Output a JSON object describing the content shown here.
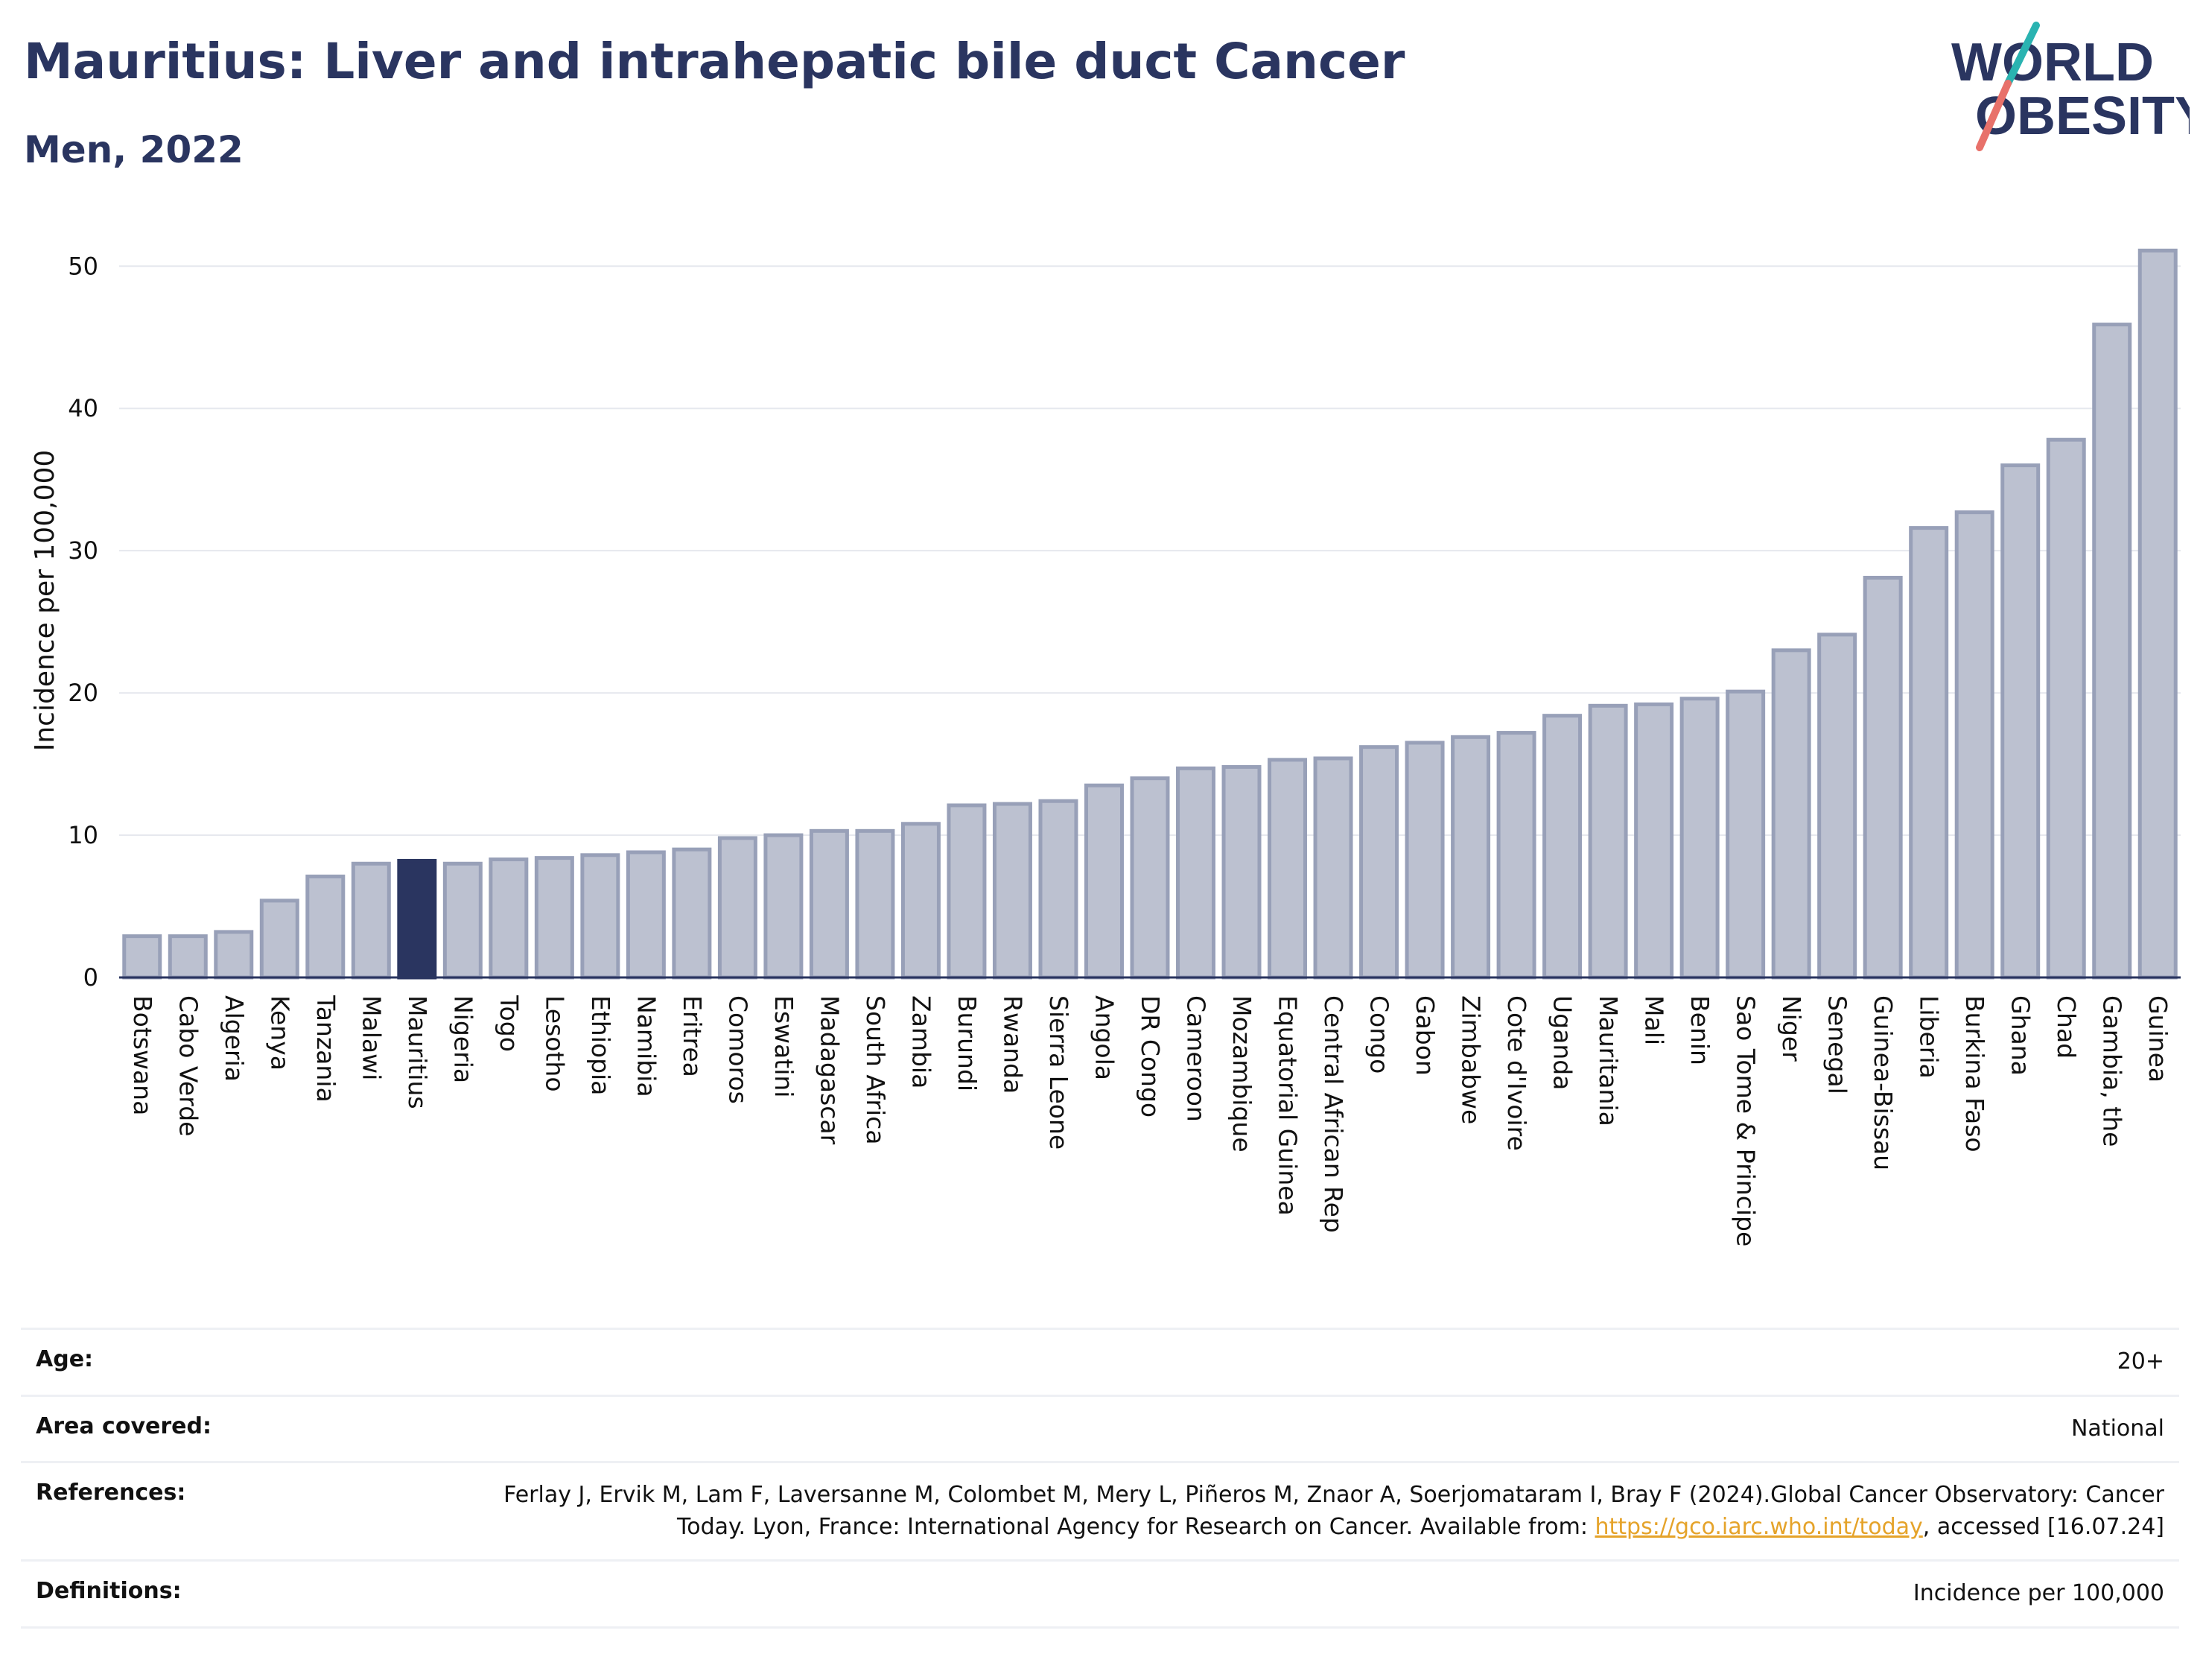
{
  "header": {
    "title": "Mauritius: Liver and intrahepatic bile duct Cancer",
    "subtitle": "Men, 2022"
  },
  "logo": {
    "line1": "WORLD",
    "line2": "OBESITY",
    "text_color": "#2a3560",
    "slash_teal": "#2ab3b1",
    "slash_coral": "#e8716a"
  },
  "colors": {
    "bar_fill": "#bcc1d0",
    "bar_stroke": "#98a0b8",
    "highlight": "#2a3560",
    "grid": "#e6e8ee"
  },
  "chart_data": {
    "type": "bar",
    "ylabel": "Incidence per 100,000",
    "xlabel": "",
    "ylim": [
      0,
      53
    ],
    "yticks": [
      0,
      10,
      20,
      30,
      40,
      50
    ],
    "grid": true,
    "highlight": "Mauritius",
    "categories": [
      "Botswana",
      "Cabo Verde",
      "Algeria",
      "Kenya",
      "Tanzania",
      "Malawi",
      "Mauritius",
      "Nigeria",
      "Togo",
      "Lesotho",
      "Ethiopia",
      "Namibia",
      "Eritrea",
      "Comoros",
      "Eswatini",
      "Madagascar",
      "South Africa",
      "Zambia",
      "Burundi",
      "Rwanda",
      "Sierra Leone",
      "Angola",
      "DR Congo",
      "Cameroon",
      "Mozambique",
      "Equatorial Guinea",
      "Central African Rep",
      "Congo",
      "Gabon",
      "Zimbabwe",
      "Cote d'Ivoire",
      "Uganda",
      "Mauritania",
      "Mali",
      "Benin",
      "Sao Tome & Principe",
      "Niger",
      "Senegal",
      "Guinea-Bissau",
      "Liberia",
      "Burkina Faso",
      "Ghana",
      "Chad",
      "Gambia, the",
      "Guinea"
    ],
    "values": [
      2.9,
      2.9,
      3.2,
      5.4,
      7.1,
      8.0,
      8.2,
      8.0,
      8.3,
      8.4,
      8.6,
      8.8,
      9.0,
      9.8,
      10.0,
      10.3,
      10.3,
      10.8,
      12.1,
      12.2,
      12.4,
      13.5,
      14.0,
      14.7,
      14.8,
      15.3,
      15.4,
      16.2,
      16.5,
      16.9,
      17.2,
      18.4,
      19.1,
      19.2,
      19.6,
      20.1,
      23.0,
      24.1,
      28.1,
      31.6,
      32.7,
      36.0,
      37.8,
      45.9,
      51.1
    ]
  },
  "info": {
    "age_label": "Age:",
    "age_value": "20+",
    "area_label": "Area covered:",
    "area_value": "National",
    "references_label": "References:",
    "references_text_1": "Ferlay J, Ervik M, Lam F, Laversanne M, Colombet M, Mery L, Piñeros M, Znaor A, Soerjomataram I, Bray F (2024).Global Cancer Observatory: Cancer Today. Lyon, France: International Agency for Research on Cancer. Available from: ",
    "references_link": "https://gco.iarc.who.int/today",
    "references_text_2": ", accessed [16.07.24]",
    "definitions_label": "Definitions:",
    "definitions_value": "Incidence per 100,000"
  }
}
